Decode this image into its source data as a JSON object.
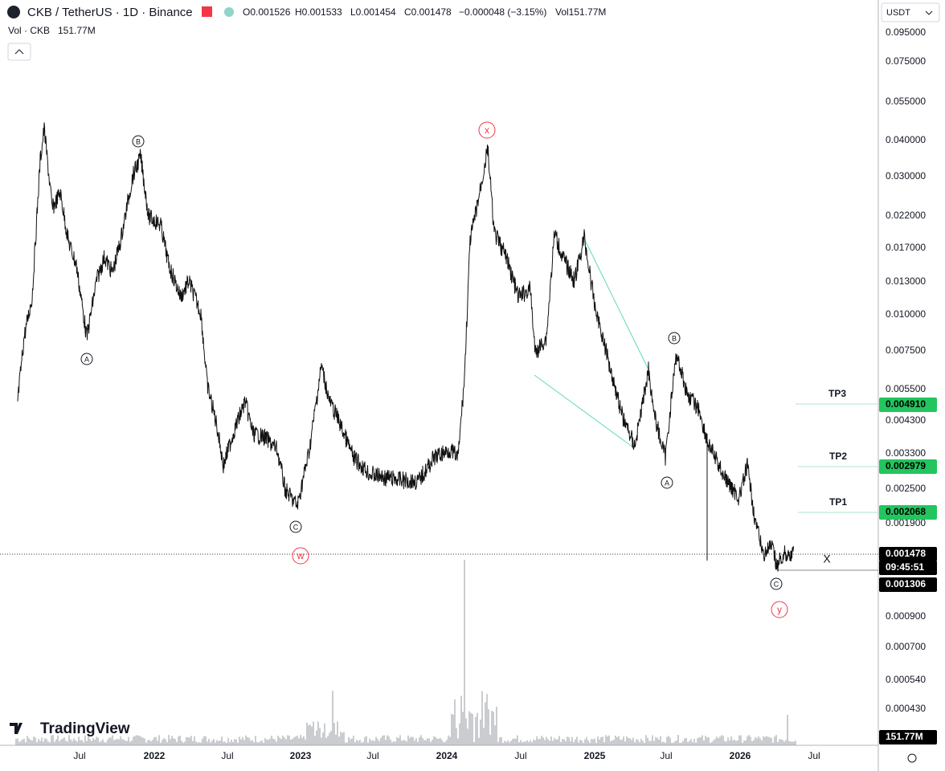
{
  "header": {
    "symbol": "CKB / TetherUS · 1D · Binance",
    "open": "O0.001526",
    "high": "H0.001533",
    "low": "L0.001454",
    "close": "C0.001478",
    "change": "−0.000048 (−3.15%)",
    "volume": "Vol151.77M"
  },
  "volume_legend": {
    "name": "Vol · CKB",
    "value": "151.77M"
  },
  "currency": "USDT",
  "price_axis": [
    "0.095000",
    "0.075000",
    "0.055000",
    "0.040000",
    "0.030000",
    "0.022000",
    "0.017000",
    "0.013000",
    "0.010000",
    "0.007500",
    "0.005500",
    "0.004300",
    "0.003300",
    "0.002500",
    "0.001900",
    "0.000900",
    "0.000700",
    "0.000540",
    "0.000430"
  ],
  "price_tags": {
    "tp3": "0.004910",
    "tp2": "0.002979",
    "tp1": "0.002068",
    "last": "0.001478",
    "countdown": "09:45:51",
    "low": "0.001306",
    "volume": "151.77M"
  },
  "time_axis": [
    "Jul",
    "2022",
    "Jul",
    "2023",
    "Jul",
    "2024",
    "Jul",
    "2025",
    "Jul",
    "2026",
    "Jul"
  ],
  "wave_labels": [
    "A",
    "B",
    "C",
    "w",
    "x",
    "B",
    "A",
    "C",
    "y"
  ],
  "targets": [
    "TP3",
    "TP2",
    "TP1"
  ],
  "marker": "X",
  "logo": "TradingView"
}
